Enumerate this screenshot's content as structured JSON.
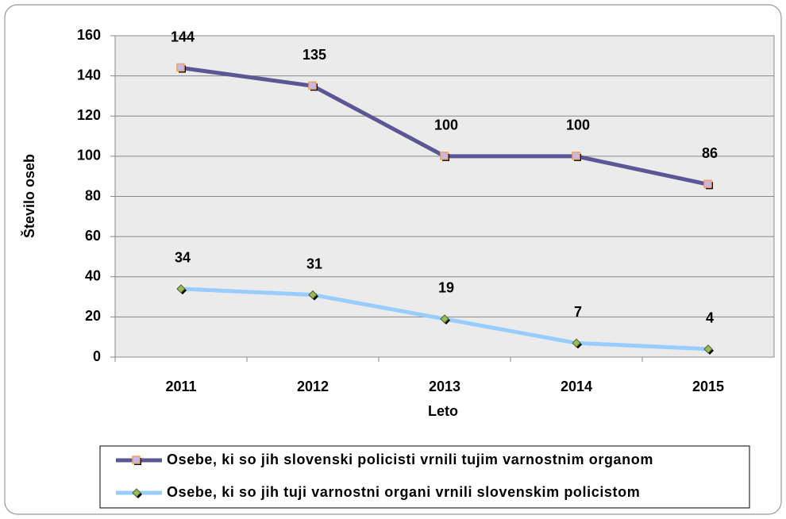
{
  "chart_data": {
    "type": "line",
    "categories": [
      "2011",
      "2012",
      "2013",
      "2014",
      "2015"
    ],
    "series": [
      {
        "name": "Osebe, ki so jih slovenski policisti vrnili tujim varnostnim organom",
        "color": "#5b5794",
        "values": [
          144,
          135,
          100,
          100,
          86
        ]
      },
      {
        "name": "Osebe, ki so jih tuji varnostni organi vrnili slovenskim policistom",
        "color": "#99ccff",
        "values": [
          34,
          31,
          19,
          7,
          4
        ]
      }
    ],
    "ylim": [
      0,
      160
    ],
    "yticks": [
      0,
      20,
      40,
      60,
      80,
      100,
      120,
      140,
      160
    ],
    "ylabel": "Število oseb",
    "xlabel": "Leto",
    "grid": true
  }
}
